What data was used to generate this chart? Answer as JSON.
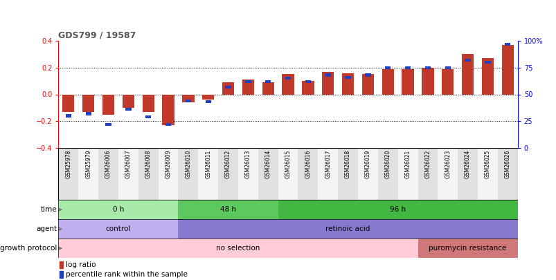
{
  "title": "GDS799 / 19587",
  "samples": [
    "GSM25978",
    "GSM25979",
    "GSM26006",
    "GSM26007",
    "GSM26008",
    "GSM26009",
    "GSM26010",
    "GSM26011",
    "GSM26012",
    "GSM26013",
    "GSM26014",
    "GSM26015",
    "GSM26016",
    "GSM26017",
    "GSM26018",
    "GSM26019",
    "GSM26020",
    "GSM26021",
    "GSM26022",
    "GSM26023",
    "GSM26024",
    "GSM26025",
    "GSM26026"
  ],
  "log_ratio": [
    -0.13,
    -0.13,
    -0.15,
    -0.1,
    -0.13,
    -0.23,
    -0.06,
    -0.04,
    0.09,
    0.11,
    0.09,
    0.15,
    0.1,
    0.17,
    0.16,
    0.15,
    0.19,
    0.19,
    0.2,
    0.19,
    0.3,
    0.27,
    0.37
  ],
  "percentile": [
    30,
    32,
    22,
    36,
    29,
    22,
    44,
    43,
    57,
    62,
    62,
    65,
    62,
    68,
    66,
    68,
    75,
    75,
    75,
    75,
    82,
    80,
    97
  ],
  "bar_color_red": "#C0392B",
  "bar_color_blue": "#2040C0",
  "time_groups": [
    {
      "label": "0 h",
      "start": 0,
      "end": 6,
      "color": "#A8EAA8"
    },
    {
      "label": "48 h",
      "start": 6,
      "end": 11,
      "color": "#5DC85D"
    },
    {
      "label": "96 h",
      "start": 11,
      "end": 23,
      "color": "#42B842"
    }
  ],
  "agent_groups": [
    {
      "label": "control",
      "start": 0,
      "end": 6,
      "color": "#C0B0F0"
    },
    {
      "label": "retinoic acid",
      "start": 6,
      "end": 23,
      "color": "#8878D0"
    }
  ],
  "growth_groups": [
    {
      "label": "no selection",
      "start": 0,
      "end": 18,
      "color": "#FFCCD8"
    },
    {
      "label": "puromycin resistance",
      "start": 18,
      "end": 23,
      "color": "#D07878"
    }
  ],
  "legend_red": "log ratio",
  "legend_blue": "percentile rank within the sample",
  "col_even": "#E0E0E0",
  "col_odd": "#F4F4F4"
}
